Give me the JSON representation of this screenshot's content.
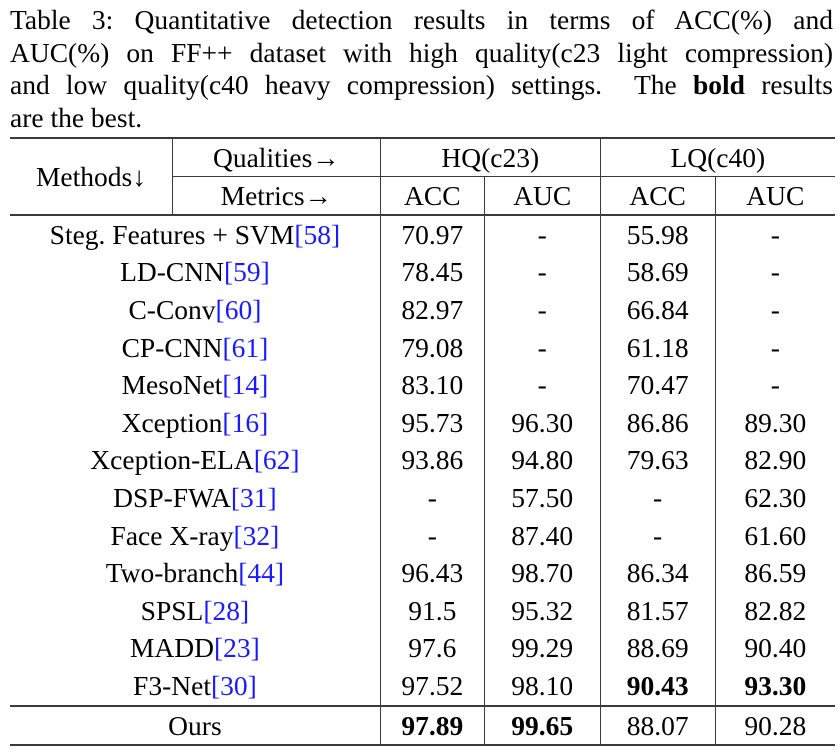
{
  "caption": {
    "lines": [
      {
        "parts": [
          {
            "text": "Table 3:  Quantitative detection results in terms of ACC(%) and",
            "bold": false
          }
        ]
      },
      {
        "parts": [
          {
            "text": "AUC(%) on FF++ dataset with high quality(c23 light compression)",
            "bold": false
          }
        ]
      },
      {
        "parts": [
          {
            "text": "and low quality(c40 heavy compression) settings.  The ",
            "bold": false
          },
          {
            "text": "bold",
            "bold": true
          },
          {
            "text": " results",
            "bold": false
          }
        ]
      },
      {
        "parts": [
          {
            "text": "are the best.",
            "bold": false
          }
        ]
      }
    ],
    "line1": "Table 3:  Quantitative detection results in terms of ACC(%) and",
    "line2": "AUC(%) on FF++ dataset with high quality(c23 light compression)",
    "line3_pre": "and low quality(c40 heavy compression) settings.  The ",
    "line3_bold": "bold",
    "line3_post": " results",
    "line4": "are the best."
  },
  "table": {
    "header": {
      "methods": "Methods↓",
      "qualities_label": "Qualities→",
      "metrics_label": "Metrics→",
      "hq": "HQ(c23)",
      "lq": "LQ(c40)",
      "hq_acc": "ACC",
      "hq_auc": "AUC",
      "lq_acc": "ACC",
      "lq_auc": "AUC"
    },
    "rows": [
      {
        "method": "Steg. Features + SVM",
        "cite": "[58]",
        "hq_acc": "70.97",
        "hq_auc": "-",
        "lq_acc": "55.98",
        "lq_auc": "-"
      },
      {
        "method": "LD-CNN",
        "cite": "[59]",
        "hq_acc": "78.45",
        "hq_auc": "-",
        "lq_acc": "58.69",
        "lq_auc": "-"
      },
      {
        "method": "C-Conv",
        "cite": "[60]",
        "hq_acc": "82.97",
        "hq_auc": "-",
        "lq_acc": "66.84",
        "lq_auc": "-"
      },
      {
        "method": "CP-CNN",
        "cite": "[61]",
        "hq_acc": "79.08",
        "hq_auc": "-",
        "lq_acc": "61.18",
        "lq_auc": "-"
      },
      {
        "method": "MesoNet",
        "cite": "[14]",
        "hq_acc": "83.10",
        "hq_auc": "-",
        "lq_acc": "70.47",
        "lq_auc": "-"
      },
      {
        "method": "Xception",
        "cite": "[16]",
        "hq_acc": "95.73",
        "hq_auc": "96.30",
        "lq_acc": "86.86",
        "lq_auc": "89.30"
      },
      {
        "method": "Xception-ELA",
        "cite": "[62]",
        "hq_acc": "93.86",
        "hq_auc": "94.80",
        "lq_acc": "79.63",
        "lq_auc": "82.90"
      },
      {
        "method": "DSP-FWA",
        "cite": "[31]",
        "hq_acc": "-",
        "hq_auc": "57.50",
        "lq_acc": "-",
        "lq_auc": "62.30"
      },
      {
        "method": "Face X-ray",
        "cite": "[32]",
        "hq_acc": "-",
        "hq_auc": "87.40",
        "lq_acc": "-",
        "lq_auc": "61.60"
      },
      {
        "method": "Two-branch",
        "cite": "[44]",
        "hq_acc": "96.43",
        "hq_auc": "98.70",
        "lq_acc": "86.34",
        "lq_auc": "86.59"
      },
      {
        "method": "SPSL",
        "cite": "[28]",
        "hq_acc": "91.5",
        "hq_auc": "95.32",
        "lq_acc": "81.57",
        "lq_auc": "82.82"
      },
      {
        "method": "MADD",
        "cite": "[23]",
        "hq_acc": "97.6",
        "hq_auc": "99.29",
        "lq_acc": "88.69",
        "lq_auc": "90.40"
      },
      {
        "method": "F3-Net",
        "cite": "[30]",
        "hq_acc": "97.52",
        "hq_auc": "98.10",
        "lq_acc": "90.43",
        "lq_auc": "93.30"
      }
    ],
    "ours": {
      "method": "Ours",
      "hq_acc": "97.89",
      "hq_auc": "99.65",
      "lq_acc": "88.07",
      "lq_auc": "90.28"
    },
    "best": {
      "hq_acc": "Ours",
      "hq_auc": "Ours",
      "lq_acc": "F3-Net",
      "lq_auc": "F3-Net"
    }
  },
  "colors": {
    "citation_link": "#1a1aff",
    "rule": "#3a3a3a",
    "text": "#000000"
  }
}
